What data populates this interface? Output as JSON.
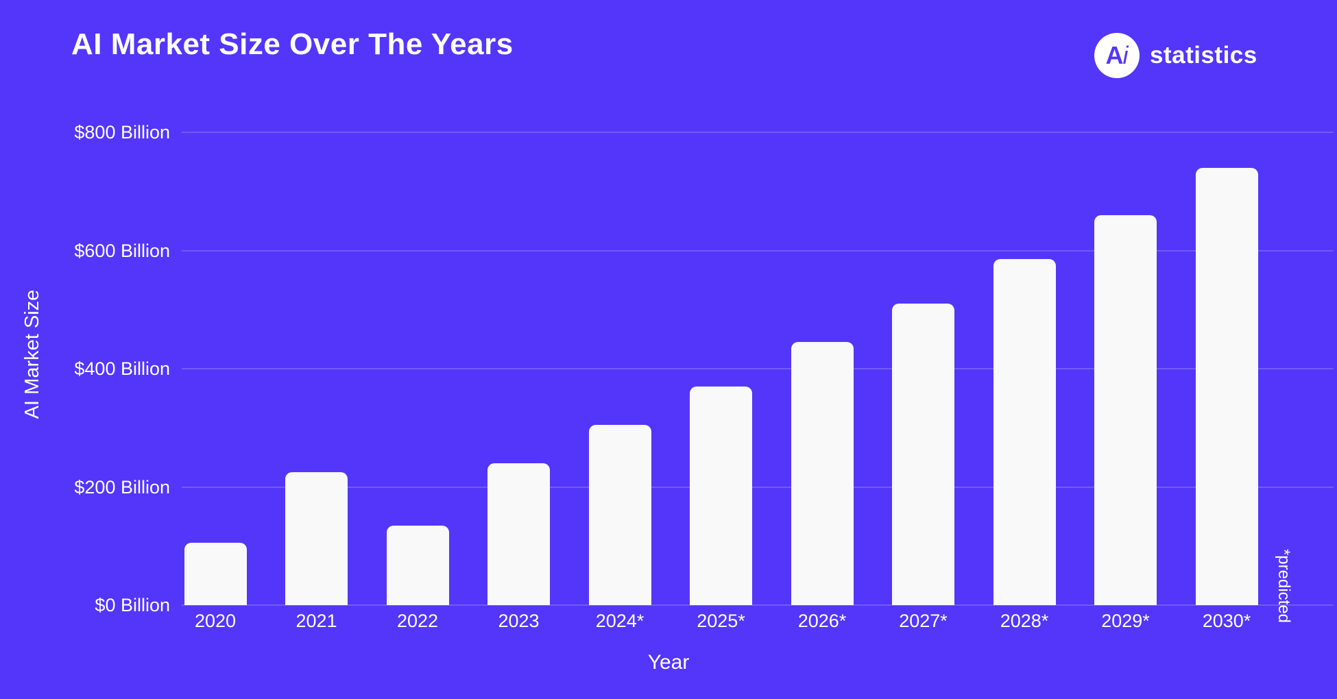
{
  "header": {
    "title": "AI Market Size Over The Years",
    "logo": {
      "icon_text_a": "A",
      "icon_text_i": "i",
      "brand": "statistics"
    }
  },
  "colors": {
    "background": "#5336FA",
    "bar": "#F9F9F9",
    "text": "#FFFFFF",
    "gridline": "rgba(255,255,255,0.18)"
  },
  "chart_data": {
    "type": "bar",
    "title": "AI Market Size Over The Years",
    "xlabel": "Year",
    "ylabel": "AI Market Size",
    "unit": "USD Billion",
    "categories": [
      "2020",
      "2021",
      "2022",
      "2023",
      "2024*",
      "2025*",
      "2026*",
      "2027*",
      "2028*",
      "2029*",
      "2030*"
    ],
    "values": [
      105,
      225,
      135,
      240,
      305,
      370,
      445,
      510,
      585,
      660,
      740
    ],
    "y_ticks": [
      "$0 Billion",
      "$200 Billion",
      "$400 Billion",
      "$600 Billion",
      "$800 Billion"
    ],
    "y_tick_values": [
      0,
      200,
      400,
      600,
      800
    ],
    "ylim": [
      0,
      800
    ],
    "grid": true,
    "legend": false,
    "annotation": "*predicted"
  }
}
